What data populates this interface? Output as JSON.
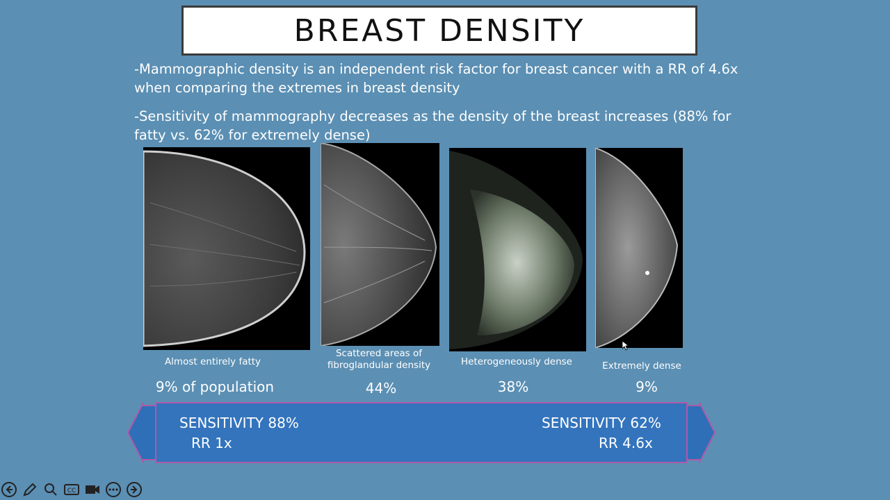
{
  "slide": {
    "title": "BREAST DENSITY",
    "bullets": [
      "-Mammographic density is an independent risk factor for breast cancer with a RR of 4.6x when comparing the extremes in breast density",
      "-Sensitivity of mammography decreases as the density of the breast increases (88% for fatty vs. 62% for extremely dense)"
    ],
    "categories": [
      {
        "caption": "Almost entirely fatty",
        "percent": "9% of population"
      },
      {
        "caption": "Scattered areas of fibroglandular density",
        "percent": "44%"
      },
      {
        "caption": "Heterogeneously dense",
        "percent": "38%"
      },
      {
        "caption": "Extremely dense",
        "percent": "9%"
      }
    ],
    "arrow": {
      "left_sensitivity": "SENSITIVITY 88%",
      "left_rr": "RR 1x",
      "right_sensitivity": "SENSITIVITY 62%",
      "right_rr": "RR 4.6x"
    }
  },
  "colors": {
    "background": "#5b8fb3",
    "arrow_fill": "#2e6fb8",
    "arrow_outline": "#b05aa8"
  },
  "toolbar": {
    "icons": [
      "arrow-left-icon",
      "pen-icon",
      "zoom-icon",
      "closed-caption-icon",
      "video-camera-icon",
      "more-options-icon",
      "arrow-right-icon"
    ],
    "cc_label": "CC"
  }
}
